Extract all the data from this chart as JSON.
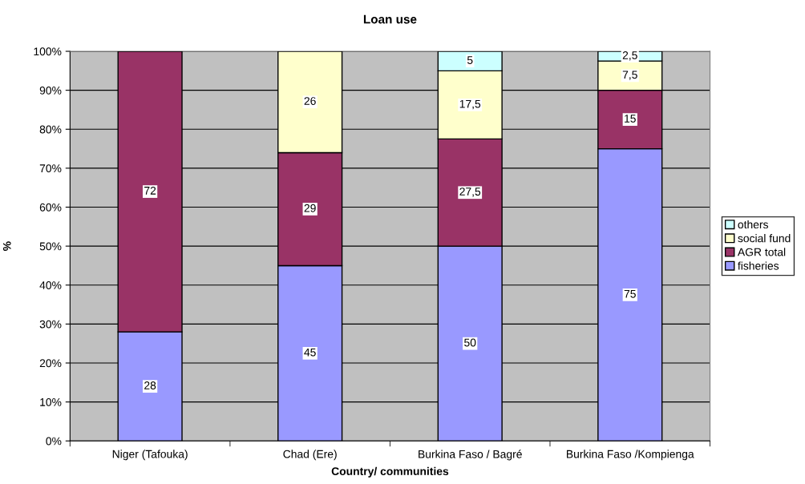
{
  "chart_data": {
    "type": "bar",
    "title": "Loan use",
    "xlabel": "Country/ communities",
    "ylabel": "%",
    "stacked": true,
    "categories": [
      "Niger (Tafouka)",
      "Chad (Ere)",
      "Burkina Faso / Bagré",
      "Burkina Faso /Kompienga"
    ],
    "series": [
      {
        "name": "fisheries",
        "color": "#9999ff",
        "values": [
          28,
          45,
          50,
          75
        ],
        "value_labels": [
          "28",
          "45",
          "50",
          "75"
        ]
      },
      {
        "name": "AGR total",
        "color": "#993366",
        "values": [
          72,
          29,
          27.5,
          15
        ],
        "value_labels": [
          "72",
          "29",
          "27,5",
          "15"
        ]
      },
      {
        "name": "social fund",
        "color": "#ffffcc",
        "values": [
          null,
          26,
          17.5,
          7.5
        ],
        "value_labels": [
          null,
          "26",
          "17,5",
          "7,5"
        ]
      },
      {
        "name": "others",
        "color": "#ccffff",
        "values": [
          null,
          null,
          5,
          2.5
        ],
        "value_labels": [
          null,
          null,
          "5",
          "2,5"
        ]
      }
    ],
    "ylim": [
      0,
      100
    ],
    "yticks": [
      {
        "value": 0,
        "label": "0%"
      },
      {
        "value": 10,
        "label": "10%"
      },
      {
        "value": 20,
        "label": "20%"
      },
      {
        "value": 30,
        "label": "30%"
      },
      {
        "value": 40,
        "label": "40%"
      },
      {
        "value": 50,
        "label": "50%"
      },
      {
        "value": 60,
        "label": "60%"
      },
      {
        "value": 70,
        "label": "70%"
      },
      {
        "value": 80,
        "label": "80%"
      },
      {
        "value": 90,
        "label": "90%"
      },
      {
        "value": 100,
        "label": "100%"
      }
    ],
    "grid": "y",
    "legend": "right"
  }
}
